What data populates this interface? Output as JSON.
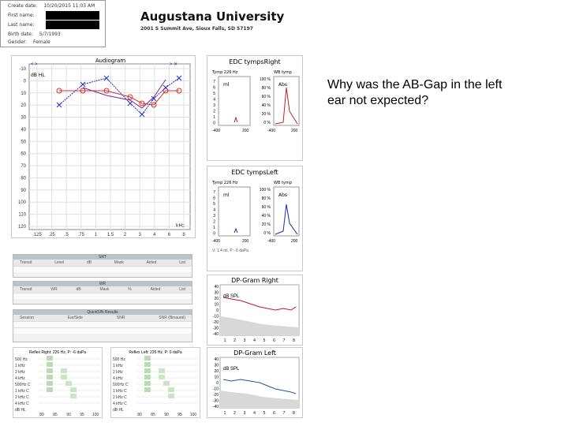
{
  "header": {
    "create_date_label": "Create date:",
    "create_date_value": "10/20/2015 11:03 AM",
    "first_name_label": "First name:",
    "last_name_label": "Last name:",
    "birth_date_label": "Birth date:",
    "birth_date_value": "5/7/1993",
    "gender_label": "Gender:",
    "gender_value": "Female"
  },
  "institution": {
    "name": "Augustana University",
    "address": "2001 S Summit Ave, Sioux Falls, SD 57197"
  },
  "question": "Why was the AB-Gap in the left ear not expected?",
  "audiogram": {
    "title": "Audiogram",
    "unit_label": "dB HL",
    "khz_label": "kHz",
    "y_ticks": [
      "-10",
      "0",
      "10",
      "20",
      "30",
      "40",
      "50",
      "60",
      "70",
      "80",
      "90",
      "100",
      "110",
      "120"
    ],
    "x_ticks": [
      ".125",
      ".25",
      ".5",
      ".75",
      "1",
      "1.5",
      "2",
      "3",
      "4",
      "6",
      "8"
    ],
    "colors": {
      "right": "#d23232",
      "left": "#2233bb",
      "bone": "#7a2a8a"
    }
  },
  "tymp_right": {
    "title": "EDC tympsRight",
    "tymp_label": "Tymp 226 Hz",
    "wb_label": "WB tymp",
    "ml": "ml",
    "abs": "Abs",
    "y_ticks": [
      "7",
      "6",
      "5",
      "4",
      "3",
      "2",
      "1",
      "0"
    ],
    "pct_ticks": [
      "100 %",
      "80 %",
      "60 %",
      "40 %",
      "20 %",
      "0 %"
    ],
    "x1": "-400",
    "x2": "200",
    "x3": "-400",
    "x4": "200",
    "color": "#c02020"
  },
  "tymp_left": {
    "title": "EDC tympsLeft",
    "tymp_label": "Tymp 226 Hz",
    "wb_label": "WB tymp",
    "ml": "ml",
    "abs": "Abs",
    "y_ticks": [
      "7",
      "6",
      "5",
      "4",
      "3",
      "2",
      "1",
      "0"
    ],
    "pct_ticks": [
      "100 %",
      "80 %",
      "60 %",
      "40 %",
      "20 %",
      "0 %"
    ],
    "x1": "-400",
    "x2": "200",
    "x3": "-400",
    "x4": "200",
    "footer": "V: 1.4 ml, P: -6 daPa",
    "color": "#1a2aa8"
  },
  "speech": {
    "srt_title": "SRT",
    "srt_cols": [
      "Transd",
      "Level",
      "dB",
      "Mask",
      "Aided",
      "List"
    ],
    "wr_title": "WR",
    "wr_cols": [
      "Transd",
      "WR",
      "dB",
      "Mask",
      "%",
      "Aided",
      "List"
    ],
    "quicksin_title": "QuickSIN Results",
    "quicksin_cols": [
      "Session",
      "Ear/Side",
      "SNR",
      "SNR (Binaural)"
    ]
  },
  "reflex_right": {
    "title": "Reflex Right: 226 Hz, P: -6 daPa",
    "rows": [
      "500 Hz",
      "1 kHz",
      "2 kHz",
      "4 kHz",
      "500Hz C",
      "1 kHz C",
      "2 kHz C",
      "4 kHz C",
      "dB HL"
    ],
    "x_ticks": [
      "80",
      "85",
      "90",
      "95",
      "100"
    ]
  },
  "reflex_left": {
    "title": "Reflex Left: 226 Hz, P: 0 daPa",
    "rows": [
      "500 Hz",
      "1 kHz",
      "2 kHz",
      "4 kHz",
      "500Hz C",
      "1 kHz C",
      "2 kHz C",
      "4 kHz C",
      "dB HL"
    ],
    "x_ticks": [
      "80",
      "85",
      "90",
      "95",
      "100"
    ]
  },
  "dp_right": {
    "title": "DP-Gram Right",
    "unit": "dB SPL",
    "khz": "kHz",
    "y_ticks": [
      "40",
      "30",
      "20",
      "10",
      "0",
      "-10",
      "-20",
      "-30",
      "-40"
    ],
    "x_ticks": [
      "1",
      "2",
      "3",
      "4",
      "5",
      "6",
      "7",
      "8"
    ],
    "color": "#b02020"
  },
  "dp_left": {
    "title": "DP-Gram Left",
    "unit": "dB SPL",
    "khz": "kHz",
    "y_ticks": [
      "40",
      "30",
      "20",
      "10",
      "0",
      "-10",
      "-20",
      "-30",
      "-40"
    ],
    "x_ticks": [
      "1",
      "2",
      "3",
      "4",
      "5",
      "6",
      "7",
      "8"
    ],
    "color": "#1a5aa0"
  }
}
